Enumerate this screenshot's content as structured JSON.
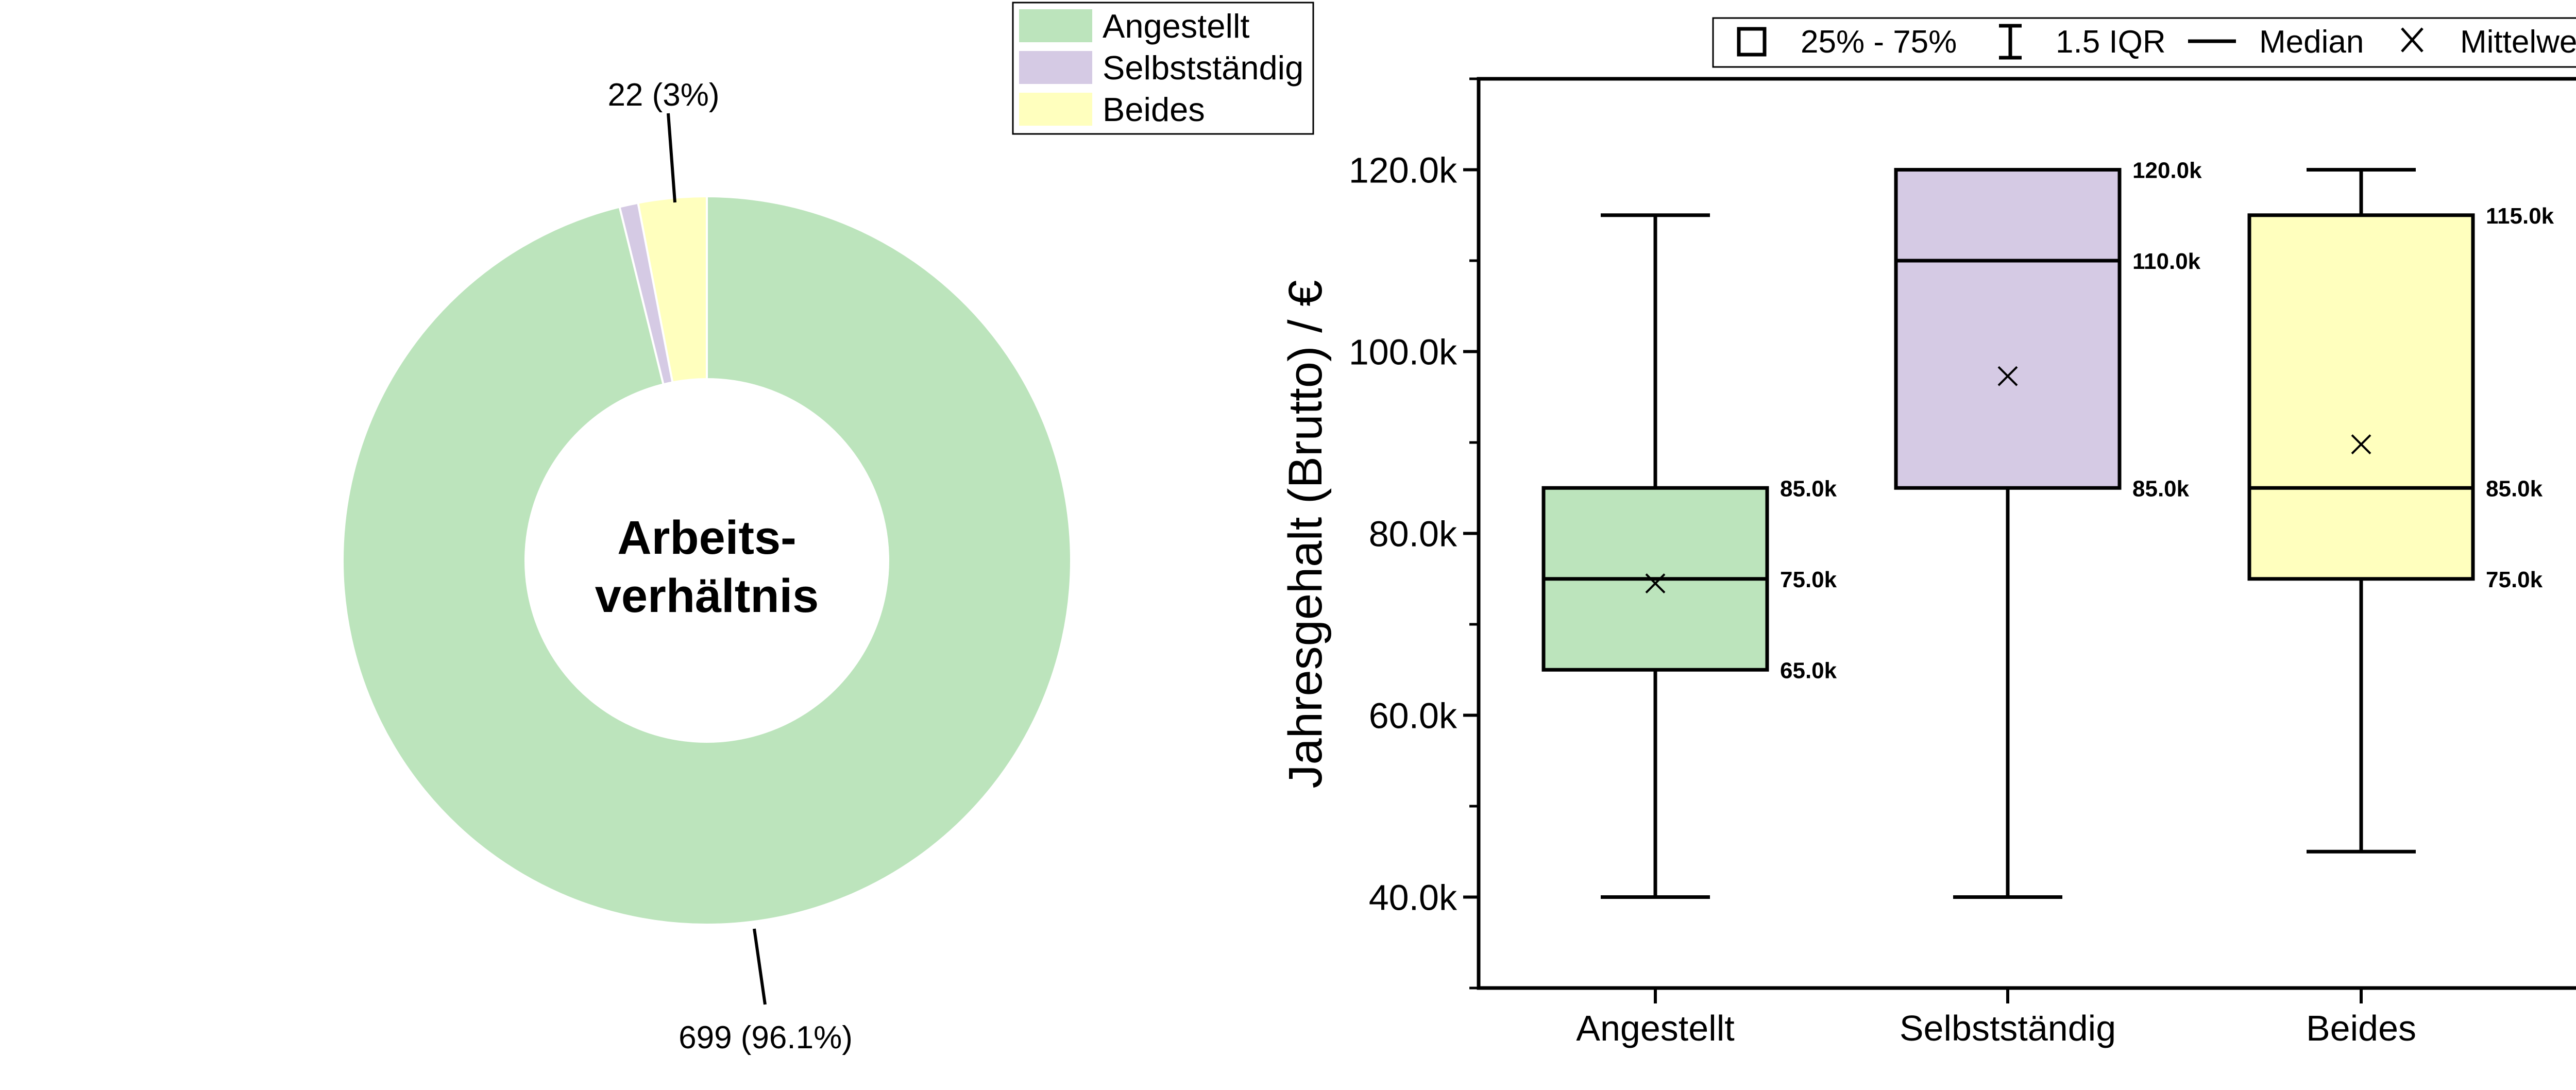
{
  "colors": {
    "Angestellt": "#bce4bc",
    "Selbstständig": "#d5cae4",
    "Beides": "#ffffbe"
  },
  "donut": {
    "center_line1": "Arbeits-",
    "center_line2": "verhältnis",
    "legend": [
      "Angestellt",
      "Selbstständig",
      "Beides"
    ],
    "label_main": "699 (96.1%)",
    "label_beides": "22 (3%)"
  },
  "boxplot": {
    "ylabel": "Jahresgehalt (Brutto) / €",
    "yticks": [
      "40.0k",
      "60.0k",
      "80.0k",
      "100.0k",
      "120.0k"
    ],
    "legend": {
      "box": "25% - 75%",
      "whisker": "1.5 IQR",
      "median": "Median",
      "mean": "Mittelwert"
    }
  },
  "chart_data": [
    {
      "type": "pie",
      "title": "",
      "center_text": "Arbeits-verhältnis",
      "categories": [
        "Angestellt",
        "Selbstständig",
        "Beides"
      ],
      "values": [
        699,
        6,
        22
      ],
      "percentages": [
        96.1,
        0.9,
        3.0
      ],
      "labels": [
        "699 (96.1%)",
        "",
        "22 (3%)"
      ],
      "legend_position": "top-right"
    },
    {
      "type": "box",
      "title": "",
      "xlabel": "",
      "ylabel": "Jahresgehalt (Brutto) / €",
      "ylim": [
        30000,
        130000
      ],
      "categories": [
        "Angestellt",
        "Selbstständig",
        "Beides"
      ],
      "whisker_low": [
        40000,
        40000,
        45000
      ],
      "q1": [
        65000,
        85000,
        75000
      ],
      "median": [
        75000,
        110000,
        85000
      ],
      "q3": [
        85000,
        120000,
        115000
      ],
      "whisker_high": [
        115000,
        120000,
        120000
      ],
      "mean": [
        74500,
        97300,
        89800
      ],
      "box_labels": [
        [
          "85.0k",
          "75.0k",
          "65.0k"
        ],
        [
          "120.0k",
          "110.0k",
          "85.0k"
        ],
        [
          "115.0k",
          "85.0k",
          "75.0k"
        ]
      ],
      "legend_position": "top"
    }
  ]
}
